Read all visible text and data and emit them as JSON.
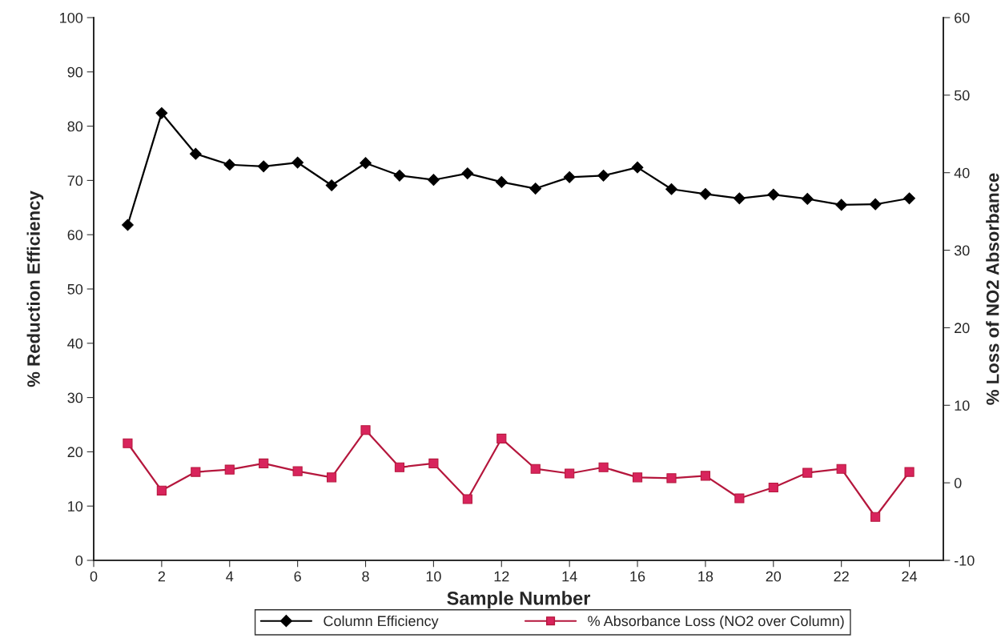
{
  "chart_data": {
    "type": "line",
    "xlabel": "Sample Number",
    "ylabel": "% Reduction Efficiency",
    "y2label": "% Loss of NO2 Absorbance",
    "x": [
      1,
      2,
      3,
      4,
      5,
      6,
      7,
      8,
      9,
      10,
      11,
      12,
      13,
      14,
      15,
      16,
      17,
      18,
      19,
      20,
      21,
      22,
      23,
      24
    ],
    "series": [
      {
        "name": "Column Efficiency",
        "color": "#000000",
        "marker": "diamond",
        "values": [
          61.8,
          82.4,
          74.9,
          72.9,
          72.6,
          73.3,
          69.1,
          73.2,
          70.9,
          70.1,
          71.3,
          69.7,
          68.5,
          70.6,
          70.9,
          72.4,
          68.4,
          67.5,
          66.7,
          67.4,
          66.6,
          65.5,
          65.6,
          66.7
        ]
      },
      {
        "name": "% Absorbance Loss (NO2 over Column)",
        "color": "#b5173d",
        "marker": "square",
        "axis": "y2",
        "values": [
          5.1,
          -1.0,
          1.4,
          1.7,
          2.5,
          1.5,
          0.7,
          6.8,
          2.0,
          2.5,
          -2.1,
          5.7,
          1.8,
          1.2,
          2.0,
          0.7,
          0.6,
          0.9,
          -2.0,
          -0.6,
          1.3,
          1.8,
          -4.4,
          1.4
        ]
      }
    ],
    "xlim": [
      0,
      25
    ],
    "xticks": [
      0,
      2,
      4,
      6,
      8,
      10,
      12,
      14,
      16,
      18,
      20,
      22,
      24
    ],
    "ylim": [
      0,
      100
    ],
    "yticks": [
      0,
      10,
      20,
      30,
      40,
      50,
      60,
      70,
      80,
      90,
      100
    ],
    "y2lim": [
      -10,
      60
    ],
    "y2ticks": [
      -10,
      0,
      10,
      20,
      30,
      40,
      50,
      60
    ],
    "grid": false,
    "legend": "bottom",
    "line_style": "solid"
  }
}
